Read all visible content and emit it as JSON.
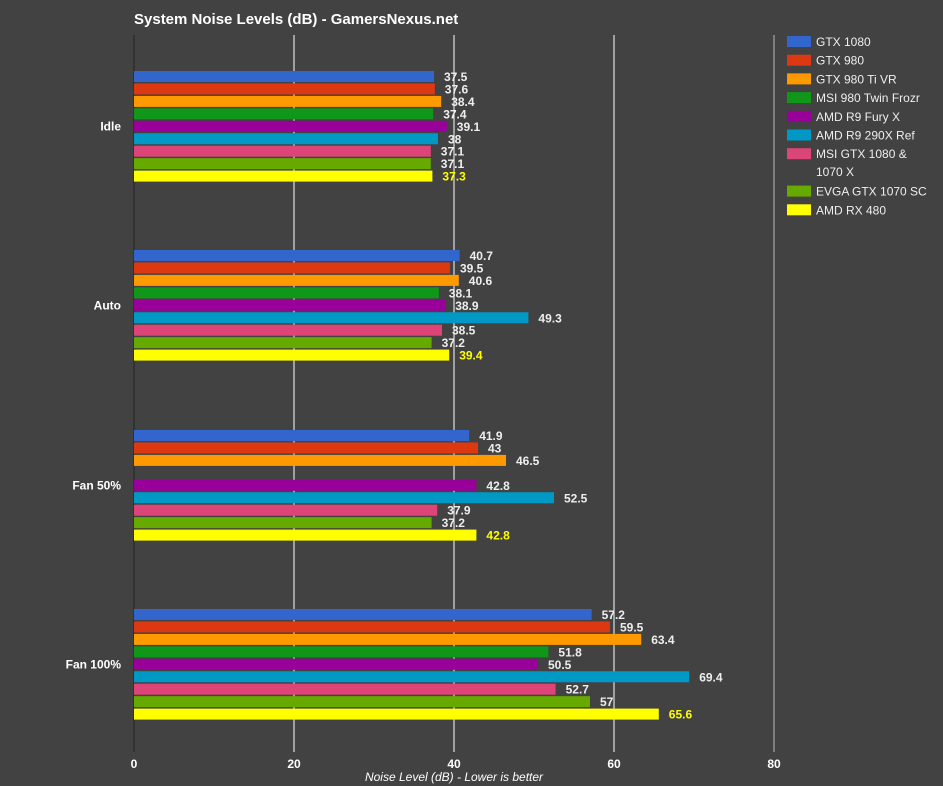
{
  "chart_data": {
    "type": "bar",
    "orientation": "horizontal",
    "title": "System Noise Levels (dB) - GamersNexus.net",
    "xlabel": "Noise Level (dB) - Lower is better",
    "ylabel": "",
    "xlim": [
      0,
      80
    ],
    "xticks": [
      "0",
      "20",
      "40",
      "60",
      "80"
    ],
    "grid": true,
    "legend_placement": "right",
    "categories": [
      "Idle",
      "Auto",
      "Fan 50%",
      "Fan 100%"
    ],
    "series": [
      {
        "name": "GTX 1080",
        "color": "#3366cc",
        "values": [
          37.5,
          40.7,
          41.9,
          57.2
        ]
      },
      {
        "name": "GTX 980",
        "color": "#dc3912",
        "values": [
          37.6,
          39.5,
          43,
          59.5
        ]
      },
      {
        "name": "GTX 980 Ti VR",
        "color": "#ff9900",
        "values": [
          38.4,
          40.6,
          46.5,
          63.4
        ]
      },
      {
        "name": "MSI 980 Twin Frozr",
        "color": "#109618",
        "values": [
          37.4,
          38.1,
          null,
          51.8
        ]
      },
      {
        "name": "AMD R9 Fury X",
        "color": "#990099",
        "values": [
          39.1,
          38.9,
          42.8,
          50.5
        ]
      },
      {
        "name": "AMD R9 290X Ref",
        "color": "#0099c6",
        "values": [
          38,
          49.3,
          52.5,
          69.4
        ]
      },
      {
        "name": "MSI GTX 1080 & 1070 X",
        "color": "#dd4477",
        "values": [
          37.1,
          38.5,
          37.9,
          52.7
        ]
      },
      {
        "name": "EVGA GTX 1070 SC",
        "color": "#66aa00",
        "values": [
          37.1,
          37.2,
          37.2,
          57
        ]
      },
      {
        "name": "AMD RX 480",
        "color": "#ffff00",
        "values": [
          37.3,
          39.4,
          42.8,
          65.6
        ]
      }
    ],
    "legend_lines": [
      [
        "GTX 1080"
      ],
      [
        "GTX 980"
      ],
      [
        "GTX 980 Ti VR"
      ],
      [
        "MSI 980 Twin Frozr"
      ],
      [
        "AMD R9 Fury X"
      ],
      [
        "AMD R9 290X Ref"
      ],
      [
        "MSI GTX 1080 &",
        "1070 X"
      ],
      [
        "EVGA GTX 1070 SC"
      ],
      [
        "AMD RX 480"
      ]
    ],
    "highlight_label_color": "#ffff00"
  }
}
